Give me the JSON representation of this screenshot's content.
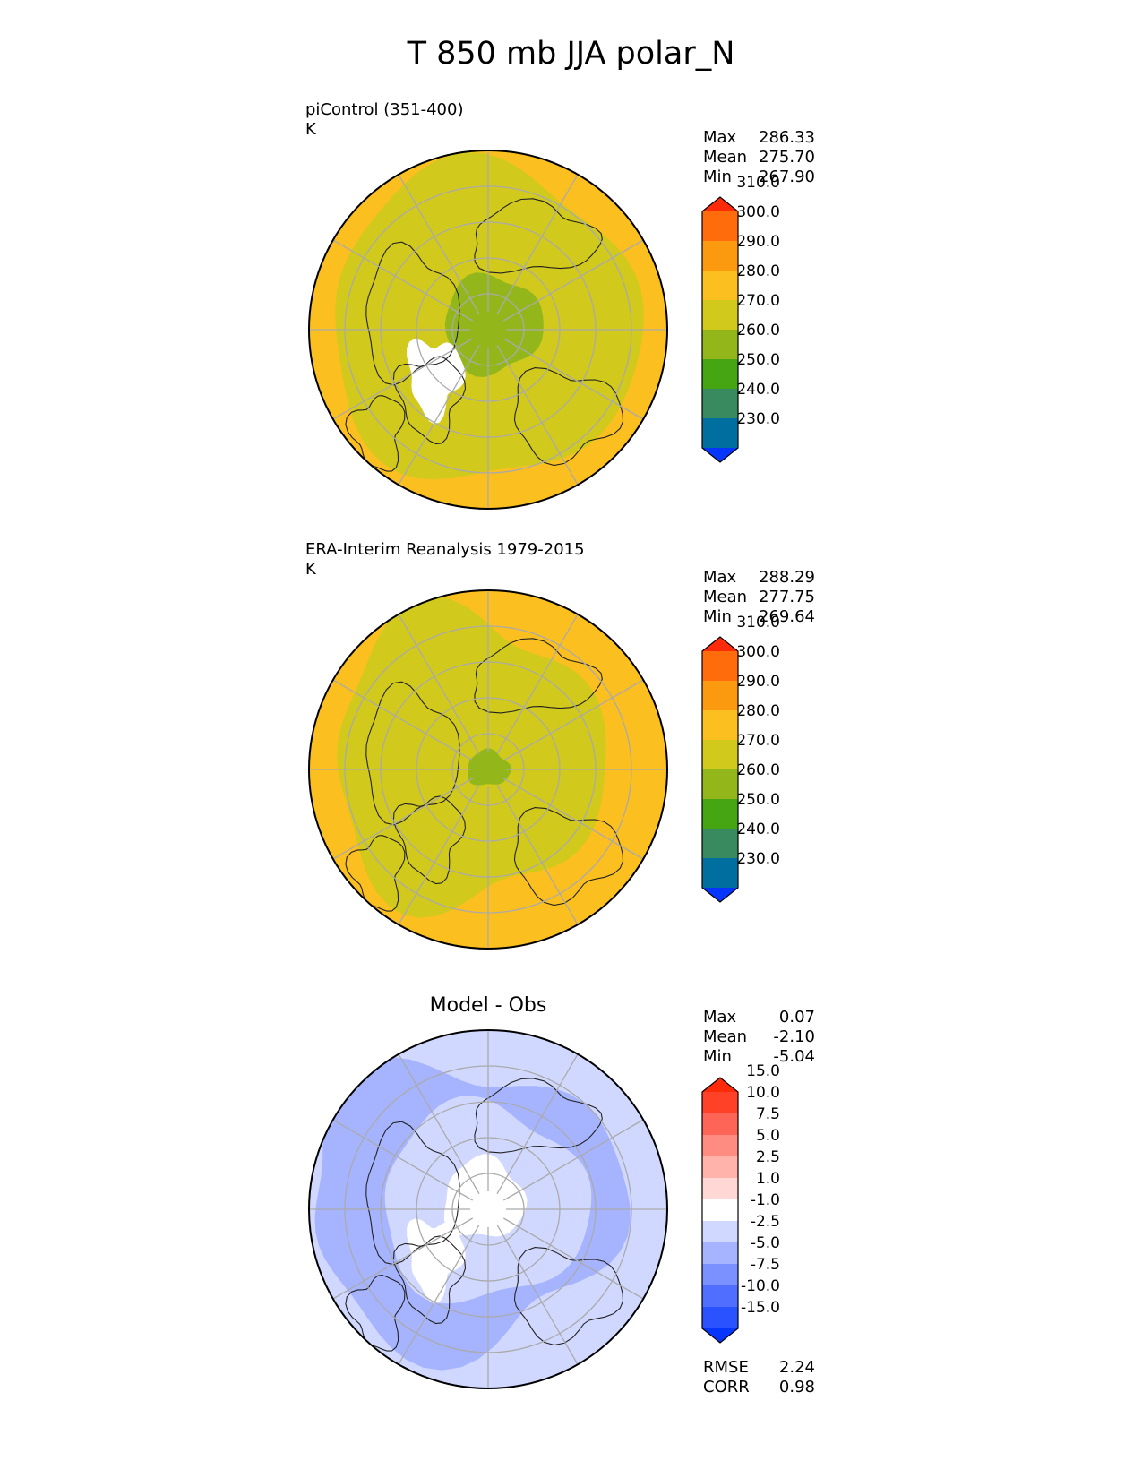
{
  "page": {
    "title": "T 850 mb JJA polar_N"
  },
  "chart_data": [
    {
      "type": "polar_stereographic_contour",
      "panel": "model",
      "title": "",
      "label_lines": [
        "piControl (351-400)",
        "K"
      ],
      "stats": [
        {
          "k": "Max",
          "v": "286.33"
        },
        {
          "k": "Mean",
          "v": "275.70"
        },
        {
          "k": "Min",
          "v": "267.90"
        }
      ],
      "colorbar": {
        "levels": [
          230,
          240,
          250,
          260,
          270,
          280,
          290,
          300,
          310
        ],
        "tick_labels": [
          "230.0",
          "240.0",
          "250.0",
          "260.0",
          "270.0",
          "280.0",
          "290.0",
          "300.0",
          "310.0"
        ],
        "colors": [
          "#0535ff",
          "#006fa0",
          "#3a8a60",
          "#45a512",
          "#93b71b",
          "#d1c91c",
          "#fbbf20",
          "#fc9a0f",
          "#ff6c0c",
          "#ff2a0a"
        ],
        "extend": "both"
      }
    },
    {
      "type": "polar_stereographic_contour",
      "panel": "reference",
      "title": "",
      "label_lines": [
        "ERA-Interim Reanalysis 1979-2015",
        "K"
      ],
      "stats": [
        {
          "k": "Max",
          "v": "288.29"
        },
        {
          "k": "Mean",
          "v": "277.75"
        },
        {
          "k": "Min",
          "v": "269.64"
        }
      ],
      "colorbar": {
        "levels": [
          230,
          240,
          250,
          260,
          270,
          280,
          290,
          300,
          310
        ],
        "tick_labels": [
          "230.0",
          "240.0",
          "250.0",
          "260.0",
          "270.0",
          "280.0",
          "290.0",
          "300.0",
          "310.0"
        ],
        "colors": [
          "#0535ff",
          "#006fa0",
          "#3a8a60",
          "#45a512",
          "#93b71b",
          "#d1c91c",
          "#fbbf20",
          "#fc9a0f",
          "#ff6c0c",
          "#ff2a0a"
        ],
        "extend": "both"
      }
    },
    {
      "type": "polar_stereographic_contour",
      "panel": "difference",
      "title": "Model - Obs",
      "label_lines": [],
      "stats": [
        {
          "k": "Max",
          "v": "0.07"
        },
        {
          "k": "Mean",
          "v": "-2.10"
        },
        {
          "k": "Min",
          "v": "-5.04"
        }
      ],
      "metrics": [
        {
          "k": "RMSE",
          "v": "2.24"
        },
        {
          "k": "CORR",
          "v": "0.98"
        }
      ],
      "colorbar": {
        "levels": [
          -15,
          -10,
          -7.5,
          -5,
          -2.5,
          -1,
          1,
          2.5,
          5,
          7.5,
          10,
          15
        ],
        "tick_labels": [
          "-15.0",
          "-10.0",
          "-7.5",
          "-5.0",
          "-2.5",
          "-1.0",
          "1.0",
          "2.5",
          "5.0",
          "7.5",
          "10.0",
          "15.0"
        ],
        "colors": [
          "#0535ff",
          "#2a52ff",
          "#506eff",
          "#7b91ff",
          "#a6b4ff",
          "#d0d8ff",
          "#ffffff",
          "#ffd8d5",
          "#ffb3ab",
          "#ff8c80",
          "#ff6557",
          "#ff4128",
          "#ff2a0a"
        ],
        "extend": "both"
      }
    }
  ]
}
